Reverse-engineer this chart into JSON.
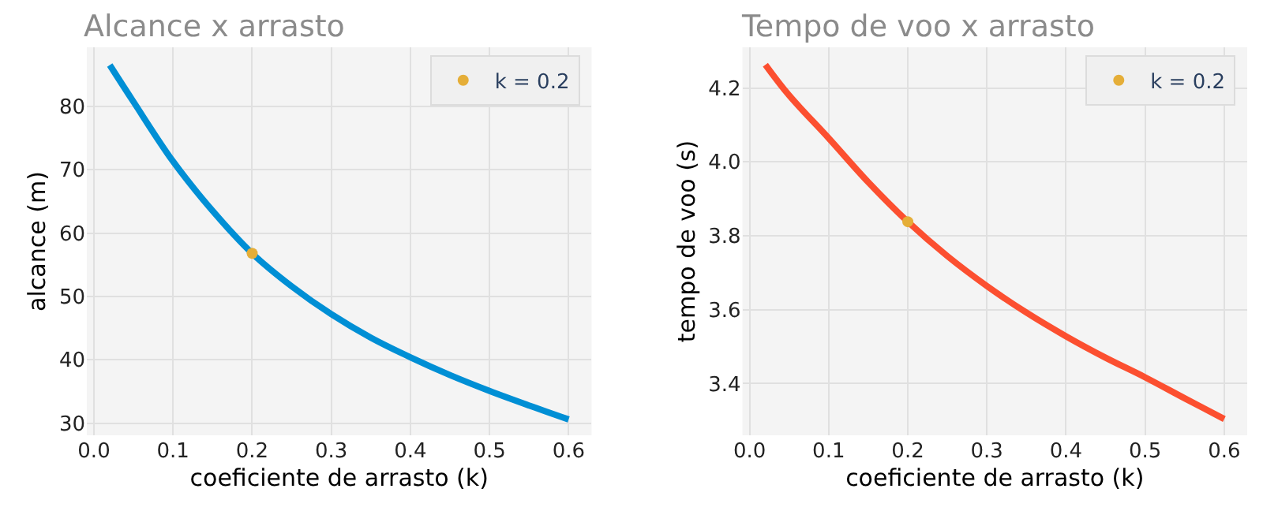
{
  "chart_data": [
    {
      "type": "line",
      "title": "Alcance x arrasto",
      "xlabel": "coeficiente de arrasto (k)",
      "ylabel": "alcance (m)",
      "xlim": [
        -0.009,
        0.629
      ],
      "xticks": [
        {
          "value": 0,
          "label": "0.0"
        },
        0.1,
        0.2,
        0.3,
        0.4,
        0.5,
        0.6
      ],
      "ylim": [
        28.1,
        89.3
      ],
      "yticks": [
        30,
        40,
        50,
        60,
        70,
        80
      ],
      "grid": true,
      "legend": "top right",
      "series": [
        {
          "color": "#008fd5",
          "x": [
            0.02,
            0.05,
            0.1,
            0.15,
            0.2,
            0.25,
            0.3,
            0.35,
            0.4,
            0.45,
            0.5,
            0.55,
            0.6
          ],
          "values": [
            86.5,
            80.7,
            71.3,
            63.5,
            56.8,
            51.6,
            47.2,
            43.5,
            40.4,
            37.6,
            35.1,
            32.8,
            30.6
          ]
        },
        {
          "type": "scatter",
          "name": "k = 0.2",
          "color": "#e5ae38",
          "marker": "circle",
          "x": [
            0.2
          ],
          "values": [
            56.8
          ]
        }
      ]
    },
    {
      "type": "line",
      "title": "Tempo de voo x arrasto",
      "xlabel": "coeficiente de arrasto (k)",
      "ylabel": "tempo de voo (s)",
      "xlim": [
        -0.009,
        0.629
      ],
      "xticks": [
        {
          "value": 0,
          "label": "0.0"
        },
        0.1,
        0.2,
        0.3,
        0.4,
        0.5,
        0.6
      ],
      "ylim": [
        3.26,
        4.31
      ],
      "yticks": [
        3.4,
        3.6,
        3.8,
        {
          "value": 4.0,
          "label": "4.0"
        },
        4.2
      ],
      "grid": true,
      "legend": "top right",
      "series": [
        {
          "color": "#fc4f30",
          "x": [
            0.02,
            0.05,
            0.1,
            0.15,
            0.2,
            0.25,
            0.3,
            0.35,
            0.4,
            0.45,
            0.5,
            0.55,
            0.6
          ],
          "values": [
            4.263,
            4.18,
            4.064,
            3.945,
            3.838,
            3.745,
            3.664,
            3.592,
            3.528,
            3.47,
            3.417,
            3.36,
            3.304
          ]
        },
        {
          "type": "scatter",
          "name": "k = 0.2",
          "color": "#e5ae38",
          "marker": "circle",
          "x": [
            0.2
          ],
          "values": [
            3.838
          ]
        }
      ]
    }
  ]
}
